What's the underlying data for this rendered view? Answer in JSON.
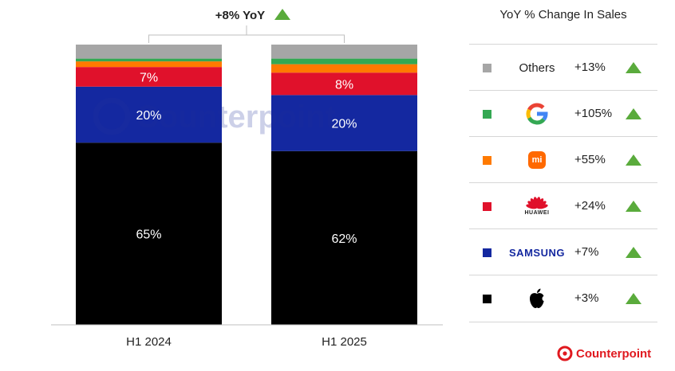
{
  "chart_data": {
    "type": "bar",
    "stacked": true,
    "normalized_percent": true,
    "categories": [
      "H1 2024",
      "H1 2025"
    ],
    "series": [
      {
        "key": "apple",
        "color": "#000000",
        "values": [
          65,
          62
        ]
      },
      {
        "key": "samsung",
        "color": "#1428a0",
        "values": [
          20,
          20
        ]
      },
      {
        "key": "huawei",
        "color": "#e0112b",
        "values": [
          7,
          8
        ]
      },
      {
        "key": "xiaomi",
        "color": "#ff7a00",
        "values": [
          2,
          3
        ]
      },
      {
        "key": "google",
        "color": "#34a853",
        "values": [
          1,
          2
        ]
      },
      {
        "key": "others",
        "color": "#a6a6a6",
        "values": [
          5,
          5
        ]
      }
    ],
    "data_labels": [
      {
        "series": "apple",
        "labels": [
          "65%",
          "62%"
        ]
      },
      {
        "series": "samsung",
        "labels": [
          "20%",
          "20%"
        ]
      },
      {
        "series": "huawei",
        "labels": [
          "7%",
          "8%"
        ]
      }
    ],
    "ylim": [
      0,
      100
    ],
    "annotation": {
      "text": "+8% YoY",
      "icon": "up-triangle-icon"
    },
    "legend": {
      "title": "YoY % Change In Sales",
      "placement": "right",
      "items": [
        {
          "key": "others",
          "brand": "Others",
          "color": "#a6a6a6",
          "change": "+13%",
          "icon": "text"
        },
        {
          "key": "google",
          "brand": "Google",
          "color": "#34a853",
          "change": "+105%",
          "icon": "google-logo-icon"
        },
        {
          "key": "xiaomi",
          "brand": "Xiaomi",
          "color": "#ff7a00",
          "change": "+55%",
          "icon": "xiaomi-logo-icon",
          "logo_text": "mi"
        },
        {
          "key": "huawei",
          "brand": "Huawei",
          "color": "#e0112b",
          "change": "+24%",
          "icon": "huawei-logo-icon",
          "logo_text": "HUAWEI"
        },
        {
          "key": "samsung",
          "brand": "Samsung",
          "color": "#1428a0",
          "change": "+7%",
          "icon": "samsung-logo-icon",
          "logo_text": "SAMSUNG"
        },
        {
          "key": "apple",
          "brand": "Apple",
          "color": "#000000",
          "change": "+3%",
          "icon": "apple-logo-icon"
        }
      ]
    },
    "source_logo": "Counterpoint",
    "watermark": "Counterpoint",
    "up_color": "#5aab3c"
  }
}
